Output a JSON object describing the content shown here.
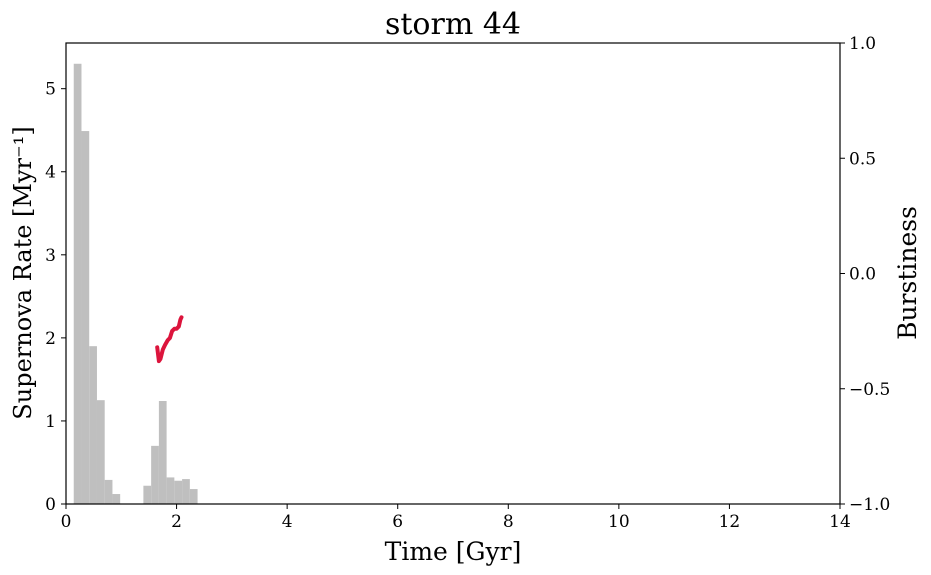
{
  "chart_data": {
    "type": "bar",
    "title": "storm 44",
    "xlabel": "Time [Gyr]",
    "ylabel": "Supernova Rate [Myr⁻¹]",
    "y2label": "Burstiness",
    "xlim": [
      0,
      14
    ],
    "ylim": [
      0,
      5.55
    ],
    "y2lim": [
      -1.0,
      1.0
    ],
    "grid": false,
    "x_ticks": [
      "0",
      "2",
      "4",
      "6",
      "8",
      "10",
      "12",
      "14"
    ],
    "y_ticks": [
      "0",
      "1",
      "2",
      "3",
      "4",
      "5"
    ],
    "y2_ticks": [
      "−1.0",
      "−0.5",
      "0.0",
      "0.5",
      "1.0"
    ],
    "bar_color": "#bfbfbf",
    "line_color": "#dc143c",
    "histogram": {
      "bin_edges": [
        0.14,
        0.28,
        0.42,
        0.56,
        0.7,
        0.84,
        0.98,
        1.12,
        1.26,
        1.4,
        1.54,
        1.68,
        1.82,
        1.96,
        2.1,
        2.24,
        2.38
      ],
      "values": [
        5.3,
        4.49,
        1.9,
        1.25,
        0.29,
        0.12,
        0,
        0,
        0,
        0.22,
        0.7,
        1.24,
        0.32,
        0.28,
        0.3,
        0.18
      ]
    },
    "burstiness_series": {
      "x": [
        1.65,
        1.68,
        1.71,
        1.75,
        1.79,
        1.84,
        1.88,
        1.92,
        1.96,
        2.0,
        2.04,
        2.07,
        2.09
      ],
      "y": [
        -0.32,
        -0.38,
        -0.37,
        -0.33,
        -0.31,
        -0.29,
        -0.28,
        -0.25,
        -0.24,
        -0.24,
        -0.23,
        -0.2,
        -0.19
      ]
    }
  }
}
